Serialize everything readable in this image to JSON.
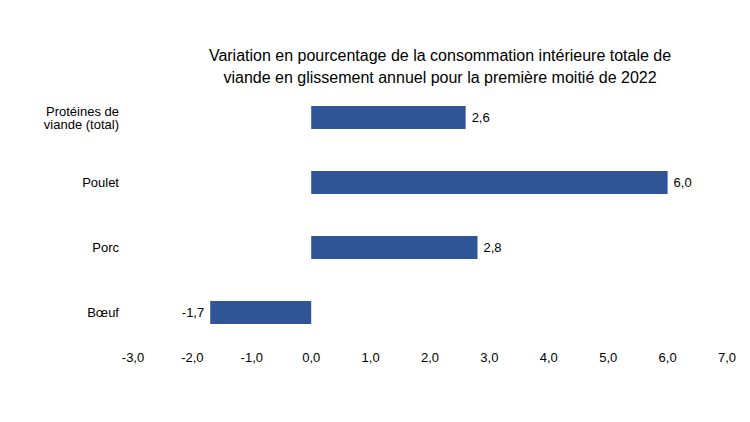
{
  "chart_data": {
    "type": "bar",
    "orientation": "horizontal",
    "title": "Variation en pourcentage de la consommation intérieure totale de viande en glissement annuel pour la première moitié de 2022",
    "categories": [
      "Protéines de viande (total)",
      "Poulet",
      "Porc",
      "Bœuf"
    ],
    "values": [
      2.6,
      6.0,
      2.8,
      -1.7
    ],
    "value_labels": [
      "2,6",
      "6,0",
      "2,8",
      "-1,7"
    ],
    "color": "#2f5597",
    "xlim": [
      -3,
      7
    ],
    "xticks": [
      {
        "value": -3,
        "label": "-3,0"
      },
      {
        "value": -2,
        "label": "-2,0"
      },
      {
        "value": -1,
        "label": "-1,0"
      },
      {
        "value": 0,
        "label": "0,0"
      },
      {
        "value": 1,
        "label": "1,0"
      },
      {
        "value": 2,
        "label": "2,0"
      },
      {
        "value": 3,
        "label": "3,0"
      },
      {
        "value": 4,
        "label": "4,0"
      },
      {
        "value": 5,
        "label": "5,0"
      },
      {
        "value": 6,
        "label": "6,0"
      },
      {
        "value": 7,
        "label": "7,0"
      }
    ],
    "data_labels": true,
    "grid": false
  }
}
